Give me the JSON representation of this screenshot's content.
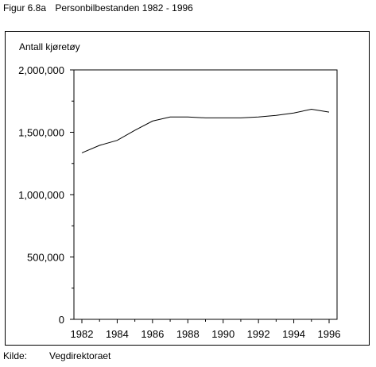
{
  "figure": {
    "label": "Figur 6.8a",
    "title": "Personbilbestanden 1982 - 1996"
  },
  "source": {
    "label": "Kilde:",
    "name": "Vegdirektoraet"
  },
  "chart_data": {
    "type": "line",
    "ylabel": "Antall kjøretøy",
    "xlabel": "",
    "ylim": [
      0,
      2000000
    ],
    "xlim": [
      1982,
      1996
    ],
    "x_ticks": [
      1982,
      1984,
      1986,
      1988,
      1990,
      1992,
      1994,
      1996
    ],
    "x_tick_labels": [
      "1982",
      "1984",
      "1986",
      "1988",
      "1990",
      "1992",
      "1994",
      "1996"
    ],
    "y_ticks": [
      0,
      500000,
      1000000,
      1500000,
      2000000
    ],
    "y_tick_labels": [
      "0",
      "500,000",
      "1,000,000",
      "1,500,000",
      "2,000,000"
    ],
    "grid": false,
    "series": [
      {
        "x": [
          1982,
          1983,
          1984,
          1985,
          1986,
          1987,
          1988,
          1989,
          1990,
          1991,
          1992,
          1993,
          1994,
          1995,
          1996
        ],
        "values": [
          1335000,
          1395000,
          1435000,
          1515000,
          1590000,
          1622000,
          1622000,
          1615000,
          1615000,
          1615000,
          1622000,
          1635000,
          1655000,
          1685000,
          1662000
        ]
      }
    ],
    "colors": {
      "line": "#000000",
      "axis": "#000000"
    }
  }
}
